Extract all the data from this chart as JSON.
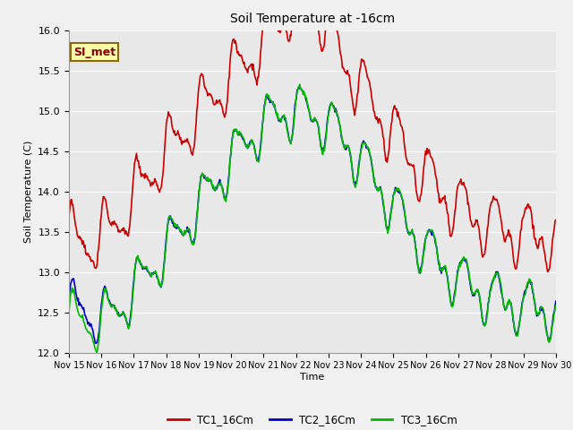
{
  "title": "Soil Temperature at -16cm",
  "xlabel": "Time",
  "ylabel": "Soil Temperature (C)",
  "ylim": [
    12.0,
    16.0
  ],
  "yticks": [
    12.0,
    12.5,
    13.0,
    13.5,
    14.0,
    14.5,
    15.0,
    15.5,
    16.0
  ],
  "bg_color": "#e8e8e8",
  "fig_color": "#f0f0f0",
  "grid_color": "#ffffff",
  "series": {
    "TC1_16Cm": {
      "color": "#cc0000",
      "linewidth": 1.2
    },
    "TC2_16Cm": {
      "color": "#0000cc",
      "linewidth": 1.2
    },
    "TC3_16Cm": {
      "color": "#00bb00",
      "linewidth": 1.2
    }
  },
  "annotation": {
    "text": "SI_met",
    "fontsize": 9,
    "color": "#8b0000",
    "bg": "#ffffaa",
    "border": "#8b6914"
  },
  "xtick_labels": [
    "Nov 15",
    "Nov 16",
    "Nov 17",
    "Nov 18",
    "Nov 19",
    "Nov 20",
    "Nov 21",
    "Nov 22",
    "Nov 23",
    "Nov 24",
    "Nov 25",
    "Nov 26",
    "Nov 27",
    "Nov 28",
    "Nov 29",
    "Nov 30"
  ],
  "n_points": 720
}
